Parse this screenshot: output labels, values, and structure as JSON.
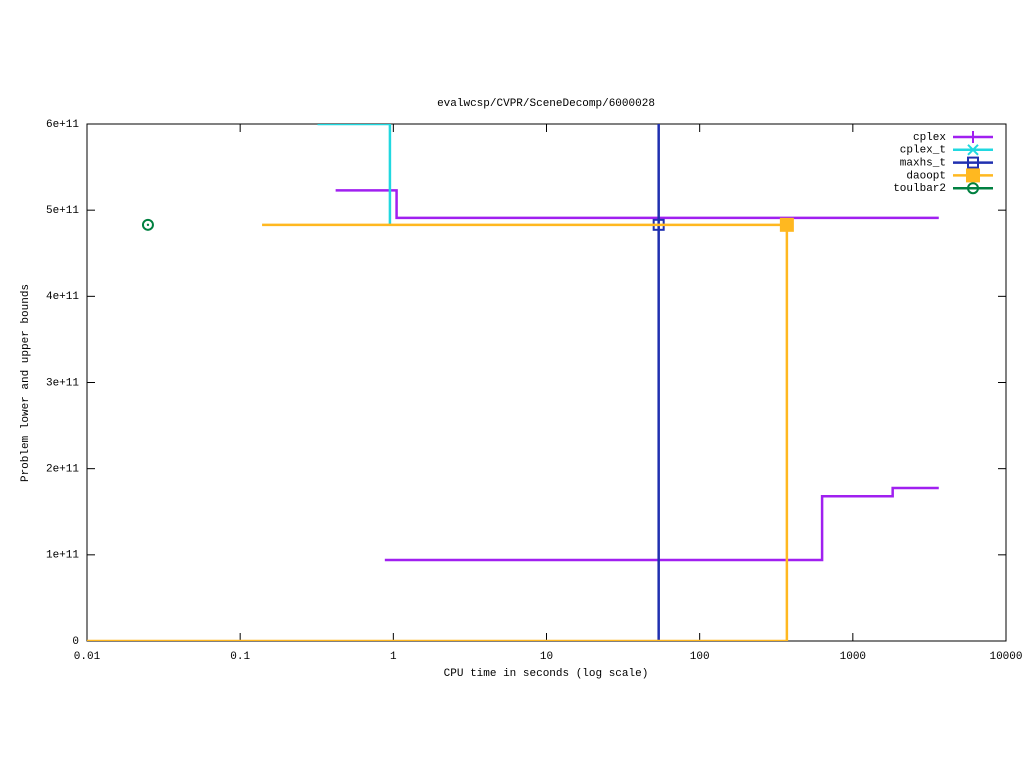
{
  "chart_data": {
    "type": "line",
    "title": "evalwcsp/CVPR/SceneDecomp/6000028",
    "x_label": "CPU time in seconds (log scale)",
    "y_label": "Problem lower and upper bounds",
    "x_log": true,
    "xlim": [
      0.01,
      10000
    ],
    "xticks": [
      0.01,
      0.1,
      1,
      10,
      100,
      1000,
      10000
    ],
    "ylim": [
      0,
      600000000000
    ],
    "yticks": [
      0,
      {
        "value": 100000000000,
        "label": "1e+11"
      },
      {
        "value": 200000000000,
        "label": "2e+11"
      },
      {
        "value": 300000000000,
        "label": "3e+11"
      },
      {
        "value": 400000000000,
        "label": "4e+11"
      },
      {
        "value": 500000000000,
        "label": "5e+11"
      },
      {
        "value": 600000000000,
        "label": "6e+11"
      }
    ],
    "legend": "top-right",
    "series": [
      {
        "name": "cplex",
        "color": "#a020f0",
        "marker": "plus",
        "x": [
          0.42,
          1.05,
          1.05,
          3640,
          3640,
          0.88,
          630,
          630,
          1820,
          1820,
          3640
        ],
        "values": [
          523000000000,
          523000000000,
          491000000000,
          491000000000,
          null,
          94000000000,
          94000000000,
          168000000000,
          168000000000,
          177500000000,
          177500000000
        ],
        "marker_x": [],
        "marker_values": []
      },
      {
        "name": "cplex_t",
        "color": "#20d8e0",
        "marker": "cross",
        "x": [
          0.32,
          0.95,
          0.95
        ],
        "values": [
          600000000000,
          600000000000,
          483000000000
        ],
        "marker_x": [],
        "marker_values": []
      },
      {
        "name": "maxhs_t",
        "color": "#2030b0",
        "marker": "square",
        "x": [
          54,
          54
        ],
        "values": [
          0,
          600000000000
        ],
        "marker_x": [
          54
        ],
        "marker_values": [
          483000000000
        ]
      },
      {
        "name": "daoopt",
        "color": "#ffb820",
        "marker": "filled-square",
        "x": [
          0.01,
          371,
          371,
          0.139
        ],
        "values": [
          0,
          0,
          483000000000,
          483000000000
        ],
        "marker_x": [
          371
        ],
        "marker_values": [
          483000000000
        ]
      },
      {
        "name": "toulbar2",
        "color": "#008040",
        "marker": "circle",
        "x": [],
        "values": [],
        "marker_x": [
          0.025
        ],
        "marker_values": [
          483000000000
        ]
      }
    ]
  }
}
